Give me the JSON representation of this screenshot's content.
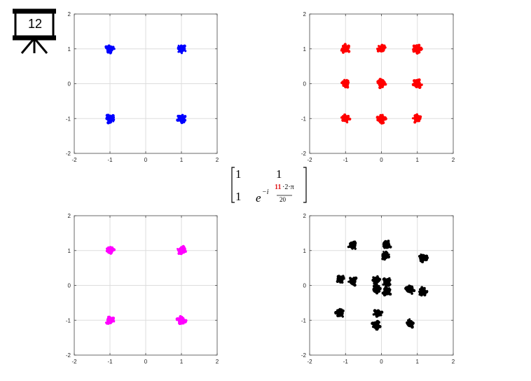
{
  "slide": {
    "badge_number": "12"
  },
  "matrix": {
    "r1c1": "1",
    "r1c2": "1",
    "r2c1": "1",
    "base": "e",
    "exp_prefix": "−i",
    "exp_highlight": "11",
    "exp_rest": "·2·π",
    "exp_denominator": "20",
    "highlight_color": "#e0191c"
  },
  "chart_data": [
    {
      "type": "scatter",
      "title": "",
      "xlim": [
        -2,
        2
      ],
      "ylim": [
        -2,
        2
      ],
      "xticks": [
        -2,
        -1,
        0,
        1,
        2
      ],
      "yticks": [
        -2,
        -1,
        0,
        1,
        2
      ],
      "grid": true,
      "color": "#0000ff",
      "series": [
        {
          "points": [
            [
              -1,
              1
            ],
            [
              1,
              1
            ],
            [
              -1,
              -1
            ],
            [
              1,
              -1
            ]
          ]
        }
      ]
    },
    {
      "type": "scatter",
      "title": "",
      "xlim": [
        -2,
        2
      ],
      "ylim": [
        -2,
        2
      ],
      "xticks": [
        -2,
        -1,
        0,
        1,
        2
      ],
      "yticks": [
        -2,
        -1,
        0,
        1,
        2
      ],
      "grid": true,
      "color": "#ff0000",
      "series": [
        {
          "points": [
            [
              -1,
              1
            ],
            [
              0,
              1
            ],
            [
              1,
              1
            ],
            [
              -1,
              0
            ],
            [
              0,
              0
            ],
            [
              1,
              0
            ],
            [
              -1,
              -1
            ],
            [
              0,
              -1
            ],
            [
              1,
              -1
            ]
          ]
        }
      ]
    },
    {
      "type": "scatter",
      "title": "",
      "xlim": [
        -2,
        2
      ],
      "ylim": [
        -2,
        2
      ],
      "xticks": [
        -2,
        -1,
        0,
        1,
        2
      ],
      "yticks": [
        -2,
        -1,
        0,
        1,
        2
      ],
      "grid": true,
      "color": "#ff00ff",
      "series": [
        {
          "points": [
            [
              -1,
              1
            ],
            [
              1,
              1
            ],
            [
              -1,
              -1
            ],
            [
              1,
              -1
            ]
          ]
        }
      ]
    },
    {
      "type": "scatter",
      "title": "",
      "xlim": [
        -2,
        2
      ],
      "ylim": [
        -2,
        2
      ],
      "xticks": [
        -2,
        -1,
        0,
        1,
        2
      ],
      "yticks": [
        -2,
        -1,
        0,
        1,
        2
      ],
      "grid": true,
      "color": "#000000",
      "series": [
        {
          "points": [
            [
              -0.8,
              1.15
            ],
            [
              0.15,
              1.15
            ],
            [
              0.1,
              0.85
            ],
            [
              1.15,
              0.8
            ],
            [
              -1.15,
              0.18
            ],
            [
              -0.8,
              0.12
            ],
            [
              -0.15,
              0.15
            ],
            [
              0.15,
              0.1
            ],
            [
              -0.15,
              -0.12
            ],
            [
              0.15,
              -0.18
            ],
            [
              0.8,
              -0.12
            ],
            [
              1.15,
              -0.18
            ],
            [
              -1.15,
              -0.8
            ],
            [
              -0.1,
              -0.8
            ],
            [
              -0.15,
              -1.15
            ],
            [
              0.8,
              -1.1
            ]
          ]
        }
      ]
    }
  ]
}
